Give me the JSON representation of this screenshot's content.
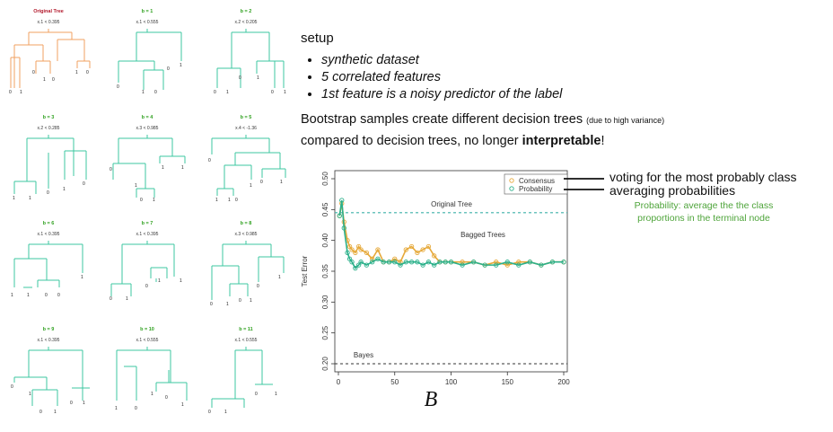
{
  "trees": [
    {
      "title": "Original Tree",
      "split": "x.1 < 0.395",
      "leaves": [
        "0",
        "1",
        "0",
        "1",
        "0",
        "1",
        "0"
      ]
    },
    {
      "title": "b = 1",
      "split": "x.1 < 0.555",
      "leaves": [
        "0",
        "1",
        "0",
        "0",
        "1"
      ]
    },
    {
      "title": "b = 2",
      "split": "x.2 < 0.205",
      "leaves": [
        "0",
        "1",
        "0",
        "1",
        "0",
        "1"
      ]
    },
    {
      "title": "b = 3",
      "split": "x.2 < 0.285",
      "leaves": [
        "1",
        "1",
        "0",
        "1",
        "0"
      ]
    },
    {
      "title": "b = 4",
      "split": "x.3 < 0.985",
      "leaves": [
        "0",
        "1",
        "0",
        "1",
        "1",
        "1"
      ]
    },
    {
      "title": "b = 5",
      "split": "x.4 < -1.36",
      "leaves": [
        "0",
        "1",
        "1",
        "0",
        "1",
        "0",
        "1"
      ]
    },
    {
      "title": "b = 6",
      "split": "x.1 < 0.395",
      "leaves": [
        "1",
        "1",
        "0",
        "0",
        "1"
      ]
    },
    {
      "title": "b = 7",
      "split": "x.1 < 0.395",
      "leaves": [
        "0",
        "1",
        "0",
        "1",
        "1"
      ]
    },
    {
      "title": "b = 8",
      "split": "x.3 < 0.985",
      "leaves": [
        "0",
        "1",
        "0",
        "1",
        "0",
        "1"
      ]
    },
    {
      "title": "b = 9",
      "split": "x.1 < 0.395",
      "leaves": [
        "0",
        "1",
        "0",
        "1",
        "0",
        "1"
      ]
    },
    {
      "title": "b = 10",
      "split": "x.1 < 0.555",
      "leaves": [
        "1",
        "0",
        "1",
        "0",
        "1"
      ]
    },
    {
      "title": "b = 11",
      "split": "x.1 < 0.555",
      "leaves": [
        "0",
        "1",
        "0",
        "1"
      ]
    }
  ],
  "text": {
    "setup": "setup",
    "bullets": [
      "synthetic dataset",
      "5 correlated features",
      "1st feature is a noisy predictor of the label"
    ],
    "line1_main": "Bootstrap samples create different decision trees ",
    "line1_small": "(due to high variance)",
    "line2_pre": "compared to decision trees, no longer ",
    "line2_bold": "interpretable",
    "line2_post": "!",
    "ann_consensus": "voting for the most probably class",
    "ann_probability": "averaging probabilities",
    "ann_green": "Probability: average the the class proportions in the terminal node"
  },
  "colors": {
    "consensus": "#e6a93a",
    "probability": "#2bb08a",
    "original_tree_line": "#3cb0a8",
    "tree_orig": "#f0a060",
    "tree_boot": "#3cc7a0",
    "green_text": "#4ea43a"
  },
  "chart_data": {
    "type": "line",
    "xlabel": "B",
    "ylabel": "Test Error",
    "xlim": [
      0,
      200
    ],
    "ylim": [
      0.2,
      0.5
    ],
    "xticks": [
      "0",
      "50",
      "100",
      "150",
      "200"
    ],
    "yticks": [
      "0.20",
      "0.25",
      "0.30",
      "0.35",
      "0.40",
      "0.45",
      "0.50"
    ],
    "legend": [
      "Consensus",
      "Probability"
    ],
    "legend_position": "top-right",
    "hlines": [
      {
        "label": "Original Tree",
        "y": 0.445,
        "style": "dashed"
      },
      {
        "label": "Bayes",
        "y": 0.2,
        "style": "dashed"
      }
    ],
    "annotation": "Bagged Trees",
    "series": [
      {
        "name": "Consensus",
        "x": [
          1,
          3,
          5,
          8,
          10,
          12,
          15,
          18,
          20,
          25,
          30,
          35,
          40,
          45,
          50,
          55,
          60,
          65,
          70,
          75,
          80,
          85,
          90,
          95,
          100,
          110,
          120,
          130,
          140,
          150,
          160,
          170,
          180,
          190,
          200
        ],
        "y": [
          0.44,
          0.46,
          0.43,
          0.4,
          0.39,
          0.385,
          0.38,
          0.39,
          0.385,
          0.38,
          0.37,
          0.385,
          0.365,
          0.365,
          0.37,
          0.365,
          0.385,
          0.39,
          0.38,
          0.385,
          0.39,
          0.375,
          0.365,
          0.365,
          0.365,
          0.365,
          0.365,
          0.36,
          0.365,
          0.36,
          0.365,
          0.365,
          0.36,
          0.365,
          0.365
        ]
      },
      {
        "name": "Probability",
        "x": [
          1,
          3,
          5,
          8,
          10,
          12,
          15,
          18,
          20,
          25,
          30,
          35,
          40,
          45,
          50,
          55,
          60,
          65,
          70,
          75,
          80,
          85,
          90,
          95,
          100,
          110,
          120,
          130,
          140,
          150,
          160,
          170,
          180,
          190,
          200
        ],
        "y": [
          0.44,
          0.465,
          0.42,
          0.38,
          0.37,
          0.365,
          0.355,
          0.36,
          0.365,
          0.36,
          0.365,
          0.37,
          0.365,
          0.365,
          0.365,
          0.36,
          0.365,
          0.365,
          0.365,
          0.36,
          0.365,
          0.36,
          0.365,
          0.365,
          0.365,
          0.36,
          0.365,
          0.36,
          0.36,
          0.365,
          0.36,
          0.365,
          0.36,
          0.365,
          0.365
        ]
      }
    ]
  }
}
